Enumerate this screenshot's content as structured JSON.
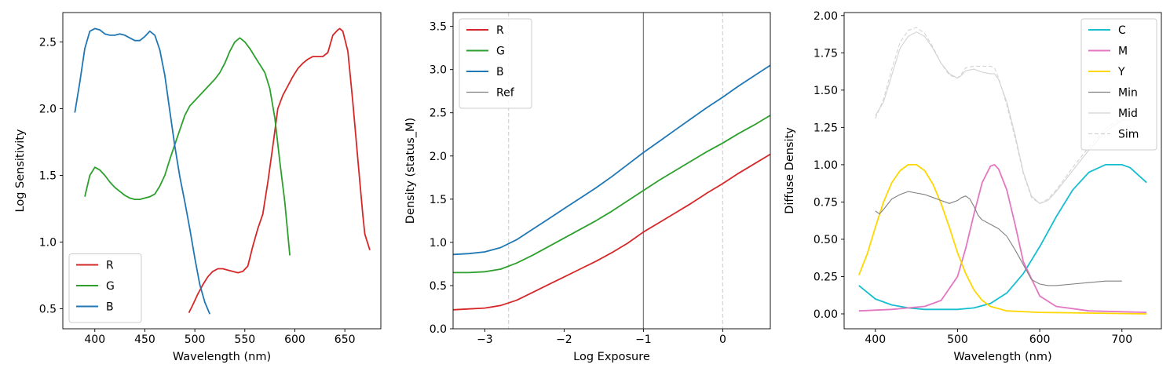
{
  "chart_data": [
    {
      "type": "line",
      "xlabel": "Wavelength (nm)",
      "ylabel": "Log Sensitivity",
      "xlim": [
        368,
        686
      ],
      "ylim": [
        0.35,
        2.72
      ],
      "xticks": [
        400,
        450,
        500,
        550,
        600,
        650
      ],
      "yticks": [
        0.5,
        1.0,
        1.5,
        2.0,
        2.5
      ],
      "xtick_labels": [
        "400",
        "450",
        "500",
        "550",
        "600",
        "650"
      ],
      "ytick_labels": [
        "0.5",
        "1.0",
        "1.5",
        "2.0",
        "2.5"
      ],
      "legend": "lower-left",
      "series": [
        {
          "name": "R",
          "color": "#d62728",
          "style": "solid",
          "x": [
            494,
            498,
            503,
            508,
            513,
            518,
            523,
            528,
            533,
            538,
            543,
            548,
            553,
            558,
            563,
            568,
            573,
            578,
            583,
            588,
            593,
            598,
            603,
            608,
            613,
            618,
            623,
            628,
            633,
            638,
            643,
            645,
            648,
            653,
            658,
            663,
            668,
            670,
            675
          ],
          "y": [
            0.47,
            0.53,
            0.61,
            0.68,
            0.74,
            0.78,
            0.8,
            0.8,
            0.79,
            0.78,
            0.77,
            0.78,
            0.82,
            0.97,
            1.1,
            1.21,
            1.45,
            1.72,
            2.0,
            2.1,
            2.17,
            2.24,
            2.3,
            2.34,
            2.37,
            2.39,
            2.39,
            2.39,
            2.42,
            2.55,
            2.59,
            2.6,
            2.58,
            2.43,
            2.05,
            1.62,
            1.2,
            1.06,
            0.94
          ]
        },
        {
          "name": "G",
          "color": "#2ca02c",
          "style": "solid",
          "x": [
            390,
            395,
            400,
            405,
            410,
            415,
            420,
            425,
            430,
            435,
            440,
            445,
            450,
            455,
            460,
            465,
            470,
            475,
            480,
            485,
            490,
            495,
            500,
            505,
            510,
            515,
            520,
            525,
            530,
            535,
            540,
            545,
            550,
            555,
            560,
            565,
            570,
            575,
            580,
            585,
            590,
            595
          ],
          "y": [
            1.34,
            1.5,
            1.56,
            1.54,
            1.5,
            1.45,
            1.41,
            1.38,
            1.35,
            1.33,
            1.32,
            1.32,
            1.33,
            1.34,
            1.36,
            1.42,
            1.5,
            1.62,
            1.73,
            1.84,
            1.95,
            2.02,
            2.06,
            2.1,
            2.14,
            2.18,
            2.22,
            2.27,
            2.34,
            2.43,
            2.5,
            2.53,
            2.5,
            2.45,
            2.39,
            2.33,
            2.27,
            2.15,
            1.93,
            1.6,
            1.3,
            0.9
          ]
        },
        {
          "name": "B",
          "color": "#1f77b4",
          "style": "solid",
          "x": [
            380,
            385,
            390,
            395,
            400,
            405,
            410,
            415,
            420,
            425,
            430,
            435,
            440,
            445,
            450,
            455,
            460,
            465,
            470,
            475,
            480,
            485,
            490,
            495,
            500,
            505,
            510,
            515
          ],
          "y": [
            1.97,
            2.2,
            2.45,
            2.58,
            2.6,
            2.59,
            2.56,
            2.55,
            2.55,
            2.56,
            2.55,
            2.53,
            2.51,
            2.51,
            2.54,
            2.58,
            2.55,
            2.44,
            2.25,
            1.98,
            1.72,
            1.49,
            1.3,
            1.1,
            0.88,
            0.68,
            0.55,
            0.46
          ]
        }
      ]
    },
    {
      "type": "line",
      "xlabel": "Log Exposure",
      "ylabel": "Density (status_M)",
      "xlim": [
        -3.4,
        0.6
      ],
      "ylim": [
        0.0,
        3.66
      ],
      "xticks": [
        -3,
        -2,
        -1,
        0
      ],
      "yticks": [
        0.0,
        0.5,
        1.0,
        1.5,
        2.0,
        2.5,
        3.0,
        3.5
      ],
      "xtick_labels": [
        "−3",
        "−2",
        "−1",
        "0"
      ],
      "ytick_labels": [
        "0.0",
        "0.5",
        "1.0",
        "1.5",
        "2.0",
        "2.5",
        "3.0",
        "3.5"
      ],
      "legend": "top-left",
      "vlines": [
        {
          "x": -2.7,
          "color": "#d3d3d3",
          "style": "dashed"
        },
        {
          "x": -1.0,
          "color": "#808080",
          "style": "solid"
        },
        {
          "x": 0.0,
          "color": "#d3d3d3",
          "style": "dashed"
        }
      ],
      "series": [
        {
          "name": "R",
          "color": "#d62728",
          "style": "solid",
          "x": [
            -3.4,
            -3.2,
            -3.0,
            -2.8,
            -2.6,
            -2.4,
            -2.2,
            -2.0,
            -1.8,
            -1.6,
            -1.4,
            -1.2,
            -1.0,
            -0.8,
            -0.6,
            -0.4,
            -0.2,
            0.0,
            0.2,
            0.4,
            0.6
          ],
          "y": [
            0.22,
            0.23,
            0.24,
            0.27,
            0.33,
            0.42,
            0.51,
            0.6,
            0.69,
            0.78,
            0.88,
            0.99,
            1.12,
            1.23,
            1.34,
            1.45,
            1.57,
            1.68,
            1.8,
            1.91,
            2.02
          ]
        },
        {
          "name": "G",
          "color": "#2ca02c",
          "style": "solid",
          "x": [
            -3.4,
            -3.2,
            -3.0,
            -2.8,
            -2.6,
            -2.4,
            -2.2,
            -2.0,
            -1.8,
            -1.6,
            -1.4,
            -1.2,
            -1.0,
            -0.8,
            -0.6,
            -0.4,
            -0.2,
            0.0,
            0.2,
            0.4,
            0.6
          ],
          "y": [
            0.65,
            0.65,
            0.66,
            0.69,
            0.76,
            0.85,
            0.95,
            1.05,
            1.15,
            1.25,
            1.36,
            1.48,
            1.6,
            1.72,
            1.83,
            1.94,
            2.05,
            2.15,
            2.26,
            2.36,
            2.47
          ]
        },
        {
          "name": "B",
          "color": "#1f77b4",
          "style": "solid",
          "x": [
            -3.4,
            -3.2,
            -3.0,
            -2.8,
            -2.6,
            -2.4,
            -2.2,
            -2.0,
            -1.8,
            -1.6,
            -1.4,
            -1.2,
            -1.0,
            -0.8,
            -0.6,
            -0.4,
            -0.2,
            0.0,
            0.2,
            0.4,
            0.6
          ],
          "y": [
            0.86,
            0.87,
            0.89,
            0.94,
            1.03,
            1.15,
            1.27,
            1.39,
            1.51,
            1.63,
            1.76,
            1.9,
            2.04,
            2.17,
            2.3,
            2.43,
            2.56,
            2.68,
            2.81,
            2.93,
            3.05
          ]
        },
        {
          "name": "Ref",
          "color": "#808080",
          "style": "solid",
          "x": [],
          "y": []
        }
      ]
    },
    {
      "type": "line",
      "xlabel": "Wavelength (nm)",
      "ylabel": "Diffuse Density",
      "xlim": [
        362,
        748
      ],
      "ylim": [
        -0.1,
        2.02
      ],
      "xticks": [
        400,
        500,
        600,
        700
      ],
      "yticks": [
        0.0,
        0.25,
        0.5,
        0.75,
        1.0,
        1.25,
        1.5,
        1.75,
        2.0
      ],
      "xtick_labels": [
        "400",
        "500",
        "600",
        "700"
      ],
      "ytick_labels": [
        "0.00",
        "0.25",
        "0.50",
        "0.75",
        "1.00",
        "1.25",
        "1.50",
        "1.75",
        "2.00"
      ],
      "legend": "top-right",
      "series": [
        {
          "name": "C",
          "color": "#17becf",
          "style": "solid",
          "x": [
            380,
            400,
            420,
            440,
            460,
            480,
            500,
            520,
            540,
            560,
            580,
            600,
            620,
            640,
            660,
            680,
            700,
            710,
            720,
            730
          ],
          "y": [
            0.19,
            0.1,
            0.06,
            0.04,
            0.03,
            0.03,
            0.03,
            0.04,
            0.07,
            0.14,
            0.27,
            0.45,
            0.65,
            0.83,
            0.95,
            1.0,
            1.0,
            0.98,
            0.93,
            0.88
          ]
        },
        {
          "name": "M",
          "color": "#e377c2",
          "style": "solid",
          "x": [
            380,
            420,
            460,
            480,
            500,
            510,
            520,
            530,
            540,
            545,
            550,
            560,
            570,
            580,
            600,
            620,
            660,
            730
          ],
          "y": [
            0.02,
            0.03,
            0.05,
            0.09,
            0.25,
            0.44,
            0.67,
            0.88,
            0.99,
            1.0,
            0.97,
            0.83,
            0.6,
            0.35,
            0.12,
            0.05,
            0.02,
            0.01
          ]
        },
        {
          "name": "Y",
          "color": "#ffd700",
          "style": "solid",
          "x": [
            380,
            390,
            400,
            410,
            420,
            430,
            440,
            450,
            460,
            470,
            480,
            490,
            500,
            510,
            520,
            530,
            540,
            560,
            600,
            730
          ],
          "y": [
            0.26,
            0.4,
            0.58,
            0.75,
            0.88,
            0.96,
            1.0,
            1.0,
            0.96,
            0.87,
            0.74,
            0.58,
            0.41,
            0.27,
            0.16,
            0.09,
            0.05,
            0.02,
            0.01,
            0.0
          ]
        },
        {
          "name": "Min",
          "color": "#808080",
          "style": "solid",
          "x": [
            400,
            405,
            410,
            420,
            430,
            440,
            450,
            460,
            470,
            480,
            490,
            500,
            505,
            510,
            515,
            520,
            525,
            530,
            540,
            550,
            560,
            570,
            580,
            590,
            600,
            610,
            620,
            640,
            660,
            680,
            700
          ],
          "y": [
            0.69,
            0.67,
            0.7,
            0.77,
            0.8,
            0.82,
            0.81,
            0.8,
            0.78,
            0.76,
            0.74,
            0.76,
            0.78,
            0.79,
            0.77,
            0.72,
            0.66,
            0.63,
            0.6,
            0.57,
            0.52,
            0.43,
            0.33,
            0.23,
            0.2,
            0.19,
            0.19,
            0.2,
            0.21,
            0.22,
            0.22
          ]
        },
        {
          "name": "Mid",
          "color": "#d3d3d3",
          "style": "solid",
          "x": [
            400,
            410,
            420,
            430,
            440,
            450,
            460,
            470,
            480,
            490,
            500,
            505,
            510,
            520,
            530,
            540,
            545,
            550,
            560,
            570,
            580,
            590,
            600,
            610,
            620,
            640,
            660,
            680,
            700,
            710
          ],
          "y": [
            1.33,
            1.42,
            1.6,
            1.78,
            1.86,
            1.89,
            1.86,
            1.78,
            1.68,
            1.61,
            1.58,
            1.6,
            1.63,
            1.64,
            1.62,
            1.61,
            1.61,
            1.57,
            1.42,
            1.2,
            0.95,
            0.79,
            0.74,
            0.76,
            0.82,
            0.96,
            1.1,
            1.22,
            1.3,
            1.3
          ]
        },
        {
          "name": "Sim",
          "color": "#d3d3d3",
          "style": "dashed",
          "x": [
            400,
            410,
            420,
            430,
            440,
            450,
            460,
            470,
            480,
            490,
            500,
            505,
            510,
            520,
            530,
            540,
            545,
            550,
            560,
            570,
            580,
            590,
            600,
            610,
            620,
            640,
            660,
            680,
            700,
            710
          ],
          "y": [
            1.31,
            1.44,
            1.64,
            1.82,
            1.9,
            1.92,
            1.88,
            1.79,
            1.68,
            1.6,
            1.58,
            1.61,
            1.65,
            1.66,
            1.66,
            1.66,
            1.65,
            1.58,
            1.4,
            1.18,
            0.94,
            0.78,
            0.74,
            0.77,
            0.83,
            0.98,
            1.12,
            1.24,
            1.32,
            1.32
          ]
        }
      ]
    }
  ]
}
